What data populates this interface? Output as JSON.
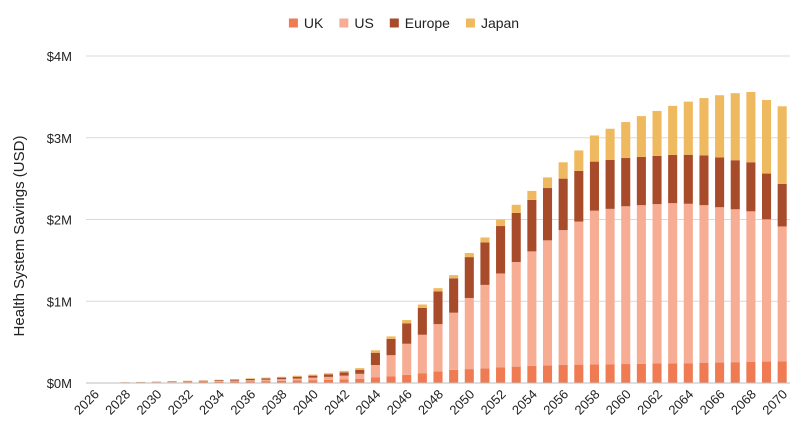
{
  "chart_data": {
    "type": "bar",
    "stacked": true,
    "title": "",
    "xlabel": "",
    "ylabel": "Health System Savings (USD)",
    "ylim": [
      0,
      4000000
    ],
    "yticks": [
      {
        "value": 0,
        "label": "$0M"
      },
      {
        "value": 1000000,
        "label": "$1M"
      },
      {
        "value": 2000000,
        "label": "$2M"
      },
      {
        "value": 3000000,
        "label": "$3M"
      },
      {
        "value": 4000000,
        "label": "$4M"
      }
    ],
    "grid": true,
    "legend": "top-center",
    "categories": [
      "2026",
      "2027",
      "2028",
      "2029",
      "2030",
      "2031",
      "2032",
      "2033",
      "2034",
      "2035",
      "2036",
      "2037",
      "2038",
      "2039",
      "2040",
      "2041",
      "2042",
      "2043",
      "2044",
      "2045",
      "2046",
      "2047",
      "2048",
      "2049",
      "2050",
      "2051",
      "2052",
      "2053",
      "2054",
      "2055",
      "2056",
      "2057",
      "2058",
      "2059",
      "2060",
      "2061",
      "2062",
      "2063",
      "2064",
      "2065",
      "2066",
      "2067",
      "2068",
      "2069",
      "2070"
    ],
    "xtick_labels": [
      "2026",
      "2028",
      "2030",
      "2032",
      "2034",
      "2036",
      "2038",
      "2040",
      "2042",
      "2044",
      "2046",
      "2048",
      "2050",
      "2052",
      "2054",
      "2056",
      "2058",
      "2060",
      "2062",
      "2064",
      "2066",
      "2068",
      "2070"
    ],
    "series": [
      {
        "name": "UK",
        "color": "#f07a52",
        "values": [
          2000,
          3000,
          4000,
          5000,
          7000,
          9000,
          11000,
          13000,
          15000,
          18000,
          20000,
          23000,
          26000,
          30000,
          35000,
          40000,
          45000,
          52000,
          70000,
          80000,
          100000,
          120000,
          140000,
          160000,
          170000,
          180000,
          190000,
          200000,
          210000,
          215000,
          220000,
          225000,
          228000,
          230000,
          232000,
          235000,
          238000,
          240000,
          242000,
          245000,
          250000,
          255000,
          260000,
          262000,
          265000
        ]
      },
      {
        "name": "US",
        "color": "#f6ad94",
        "values": [
          500,
          1000,
          2000,
          3000,
          4000,
          5000,
          6000,
          7000,
          9000,
          11000,
          14000,
          17000,
          20000,
          25000,
          30000,
          35000,
          45000,
          60000,
          150000,
          260000,
          380000,
          470000,
          580000,
          700000,
          870000,
          1020000,
          1150000,
          1280000,
          1400000,
          1530000,
          1650000,
          1750000,
          1880000,
          1900000,
          1930000,
          1940000,
          1950000,
          1960000,
          1950000,
          1930000,
          1900000,
          1870000,
          1840000,
          1740000,
          1650000
        ]
      },
      {
        "name": "Europe",
        "color": "#a84b2b",
        "values": [
          500,
          1000,
          2000,
          3000,
          4000,
          5000,
          6000,
          8000,
          10000,
          12000,
          15000,
          17000,
          20000,
          22000,
          25000,
          30000,
          40000,
          50000,
          150000,
          200000,
          250000,
          330000,
          400000,
          420000,
          500000,
          520000,
          580000,
          600000,
          630000,
          640000,
          630000,
          620000,
          600000,
          600000,
          590000,
          590000,
          590000,
          590000,
          600000,
          610000,
          610000,
          600000,
          600000,
          560000,
          520000
        ]
      },
      {
        "name": "Japan",
        "color": "#efb95f",
        "values": [
          500,
          500,
          1000,
          2000,
          3000,
          4000,
          5000,
          5000,
          6000,
          7000,
          8000,
          9000,
          10000,
          12000,
          13000,
          15000,
          18000,
          20000,
          30000,
          30000,
          40000,
          40000,
          40000,
          40000,
          50000,
          60000,
          80000,
          100000,
          110000,
          130000,
          200000,
          250000,
          320000,
          380000,
          440000,
          500000,
          550000,
          600000,
          650000,
          700000,
          760000,
          820000,
          860000,
          900000,
          950000
        ]
      }
    ]
  }
}
